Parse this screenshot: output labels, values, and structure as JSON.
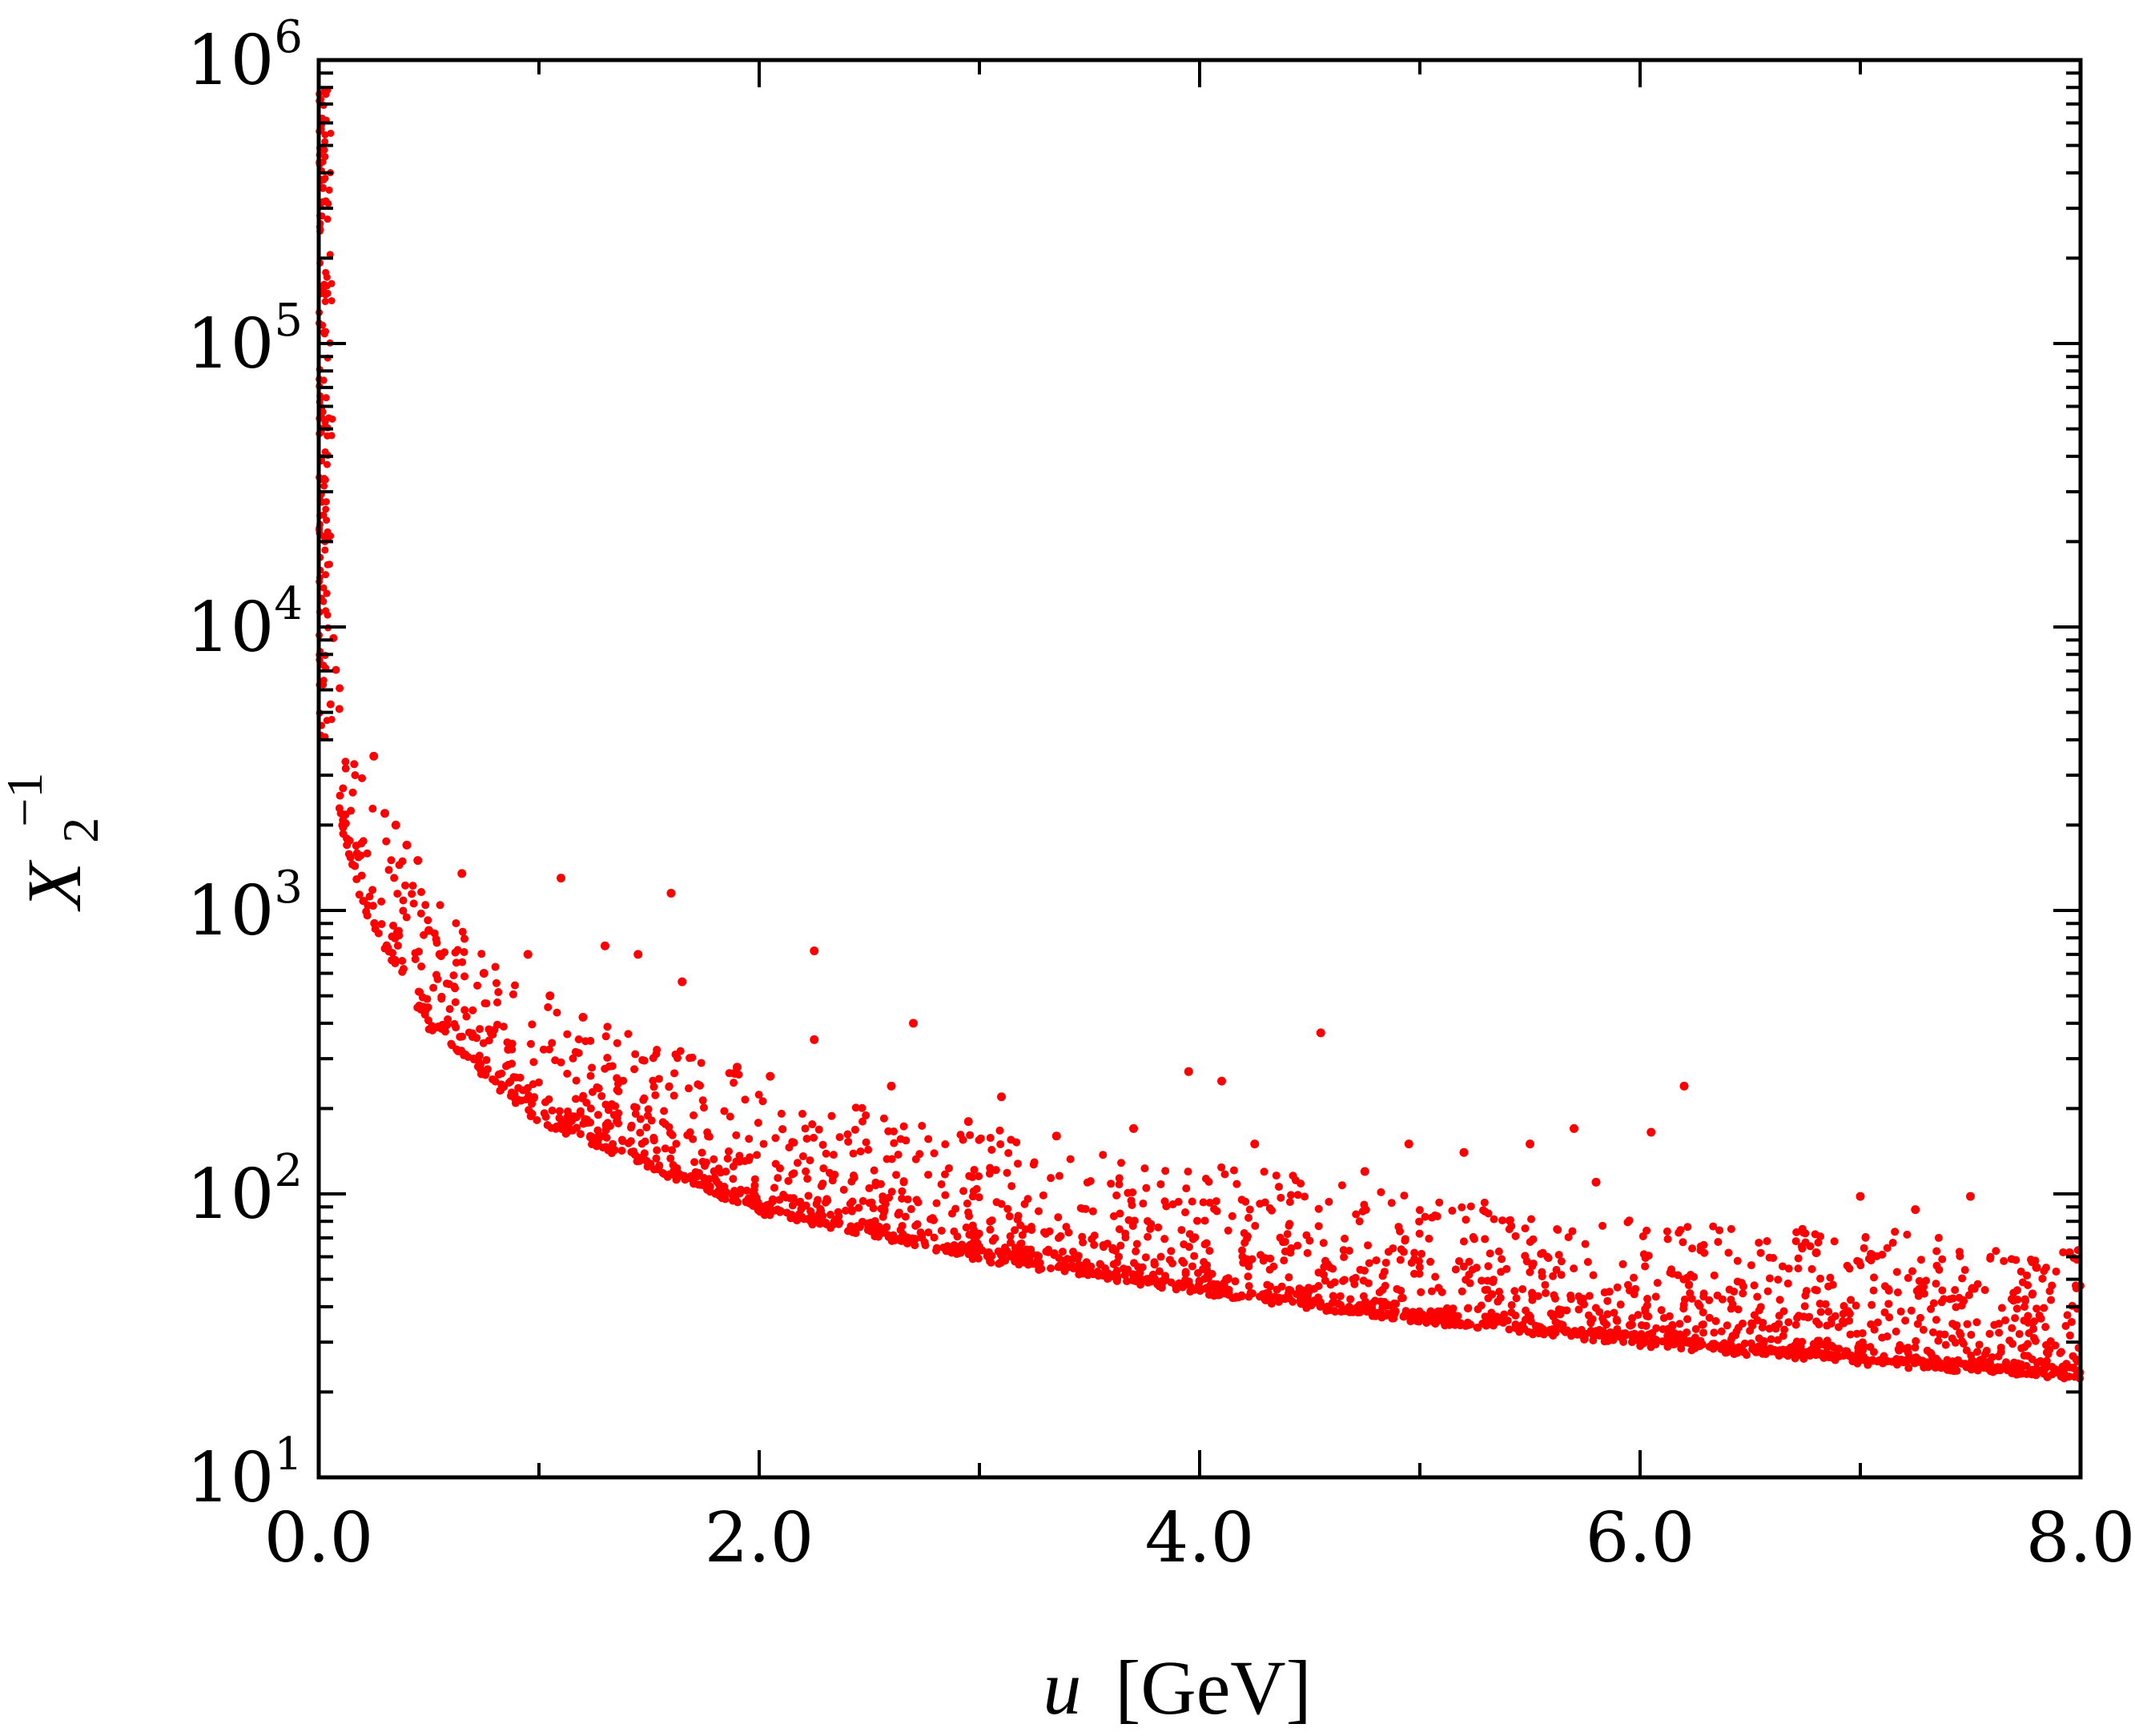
{
  "chart_data": {
    "type": "scatter",
    "title": "",
    "xlabel": {
      "var": "u",
      "unit": "[GeV]"
    },
    "ylabel": {
      "base": "X",
      "sub": "2",
      "sup": "−1"
    },
    "xlim": [
      0.0,
      8.0
    ],
    "ylim": [
      10,
      1000000
    ],
    "yscale": "log",
    "grid": false,
    "legend": "none",
    "marker_color": "#ff0000",
    "x_ticks": [
      {
        "value": 0.0,
        "label": "0.0"
      },
      {
        "value": 2.0,
        "label": "2.0"
      },
      {
        "value": 4.0,
        "label": "4.0"
      },
      {
        "value": 6.0,
        "label": "6.0"
      },
      {
        "value": 8.0,
        "label": "8.0"
      }
    ],
    "x_minor_step": 1.0,
    "y_ticks": [
      {
        "value": 10,
        "base": "10",
        "exp": "1"
      },
      {
        "value": 100,
        "base": "10",
        "exp": "2"
      },
      {
        "value": 1000,
        "base": "10",
        "exp": "3"
      },
      {
        "value": 10000,
        "base": "10",
        "exp": "4"
      },
      {
        "value": 100000,
        "base": "10",
        "exp": "5"
      },
      {
        "value": 1000000,
        "base": "10",
        "exp": "6"
      }
    ],
    "lower_envelope": {
      "description": "dense band of points along X2^-1 ≈ c / u",
      "points": [
        [
          0.02,
          20000
        ],
        [
          0.05,
          5000
        ],
        [
          0.1,
          2000
        ],
        [
          0.2,
          1000
        ],
        [
          0.5,
          380
        ],
        [
          1.0,
          175
        ],
        [
          2.0,
          85
        ],
        [
          3.0,
          58
        ],
        [
          4.0,
          44
        ],
        [
          5.0,
          35
        ],
        [
          6.0,
          29
        ],
        [
          7.0,
          25
        ],
        [
          8.0,
          22
        ]
      ]
    },
    "scattered_points": [
      [
        0.25,
        3500
      ],
      [
        0.3,
        2200
      ],
      [
        0.35,
        2000
      ],
      [
        0.4,
        1700
      ],
      [
        0.45,
        1500
      ],
      [
        0.65,
        1350
      ],
      [
        1.1,
        1300
      ],
      [
        1.6,
        1150
      ],
      [
        1.3,
        750
      ],
      [
        1.45,
        700
      ],
      [
        0.95,
        700
      ],
      [
        2.25,
        720
      ],
      [
        1.65,
        560
      ],
      [
        2.7,
        400
      ],
      [
        4.55,
        370
      ],
      [
        2.25,
        350
      ],
      [
        3.95,
        270
      ],
      [
        6.2,
        240
      ],
      [
        4.1,
        250
      ],
      [
        2.6,
        240
      ],
      [
        3.1,
        220
      ],
      [
        0.5,
        850
      ],
      [
        0.55,
        700
      ],
      [
        0.75,
        600
      ],
      [
        1.05,
        500
      ],
      [
        1.2,
        420
      ],
      [
        1.9,
        280
      ],
      [
        2.05,
        260
      ],
      [
        3.7,
        170
      ],
      [
        4.25,
        150
      ],
      [
        4.95,
        150
      ],
      [
        5.2,
        140
      ],
      [
        5.5,
        150
      ],
      [
        5.7,
        170
      ],
      [
        6.05,
        165
      ],
      [
        4.75,
        120
      ],
      [
        5.8,
        110
      ],
      [
        7.0,
        98
      ],
      [
        7.5,
        98
      ],
      [
        7.25,
        88
      ],
      [
        7.95,
        62
      ],
      [
        7.8,
        55
      ],
      [
        6.8,
        62
      ],
      [
        3.35,
        160
      ],
      [
        2.95,
        180
      ]
    ]
  }
}
